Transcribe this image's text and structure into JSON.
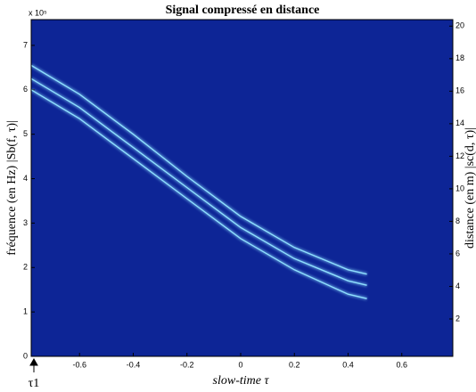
{
  "chart_data": {
    "type": "line",
    "title": "Signal compressé en distance",
    "xlabel": "slow-time τ",
    "ylabel": "fréquence (en Hz) |Sb(f, τ)|",
    "y2label": "distance (en m) |sc(d, τ)|",
    "y_exponent_label": "x 10⁵",
    "annotation": "τ1",
    "background": "#0d2596",
    "x": [
      -0.78,
      -0.6,
      -0.4,
      -0.2,
      0,
      0.2,
      0.4,
      0.47
    ],
    "series": [
      {
        "color": "#8fe0ff",
        "values": [
          6.55,
          5.9,
          5.0,
          4.05,
          3.15,
          2.45,
          1.95,
          1.85
        ]
      },
      {
        "color": "#8fe0ff",
        "values": [
          6.25,
          5.6,
          4.7,
          3.8,
          2.9,
          2.2,
          1.7,
          1.6
        ]
      },
      {
        "color": "#8fe0ff",
        "values": [
          6.0,
          5.35,
          4.45,
          3.55,
          2.65,
          1.95,
          1.4,
          1.3
        ]
      }
    ],
    "xlim": [
      -0.78,
      0.79
    ],
    "xticks": [
      -0.6,
      -0.4,
      -0.2,
      0,
      0.2,
      0.4,
      0.6
    ],
    "ylim": [
      0,
      7.58
    ],
    "yticks": [
      0,
      1,
      2,
      3,
      4,
      5,
      6,
      7
    ],
    "y2lim": [
      -0.3,
      20.4
    ],
    "y2ticks": [
      2,
      4,
      6,
      8,
      10,
      12,
      14,
      16,
      18,
      20
    ]
  }
}
